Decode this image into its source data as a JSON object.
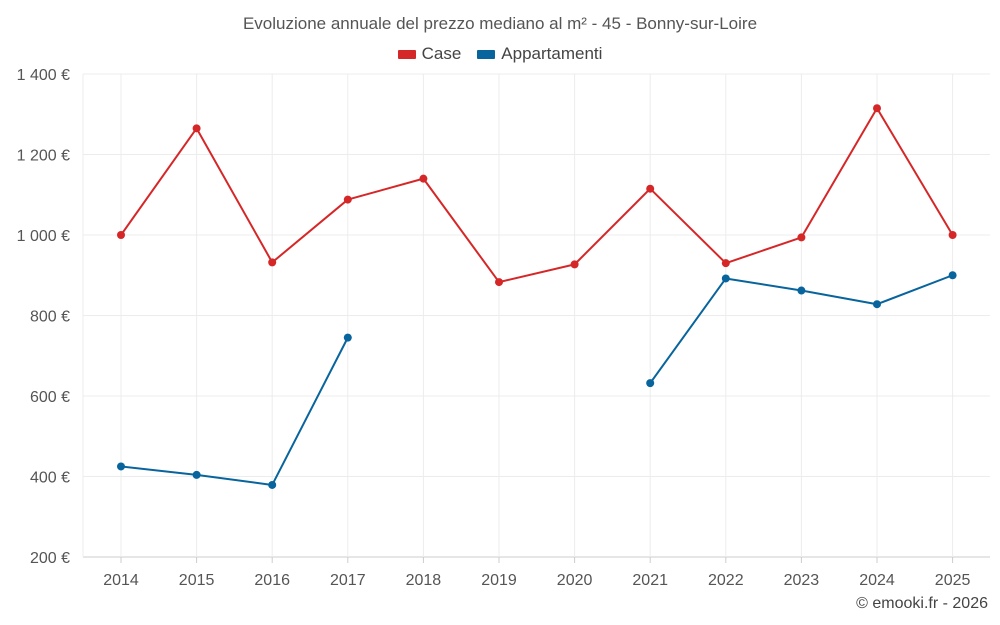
{
  "chart_data": {
    "type": "line",
    "title": "Evoluzione annuale del prezzo mediano al m² - 45 - Bonny-sur-Loire",
    "xlabel": "",
    "ylabel": "",
    "categories": [
      "2014",
      "2015",
      "2016",
      "2017",
      "2018",
      "2019",
      "2020",
      "2021",
      "2022",
      "2023",
      "2024",
      "2025"
    ],
    "ylim": [
      200,
      1400
    ],
    "yticks": [
      200,
      400,
      600,
      800,
      1000,
      1200,
      1400
    ],
    "ytick_labels": [
      "200 €",
      "400 €",
      "600 €",
      "800 €",
      "1 000 €",
      "1 200 €",
      "1 400 €"
    ],
    "grid": true,
    "legend_position": "top-center",
    "series": [
      {
        "name": "Case",
        "color": "#d62728",
        "values": [
          1000,
          1265,
          932,
          1088,
          1140,
          883,
          927,
          1115,
          930,
          994,
          1315,
          1000
        ]
      },
      {
        "name": "Appartamenti",
        "color": "#08649c",
        "values": [
          425,
          404,
          379,
          745,
          null,
          null,
          null,
          632,
          892,
          862,
          828,
          900
        ]
      }
    ]
  },
  "footer": {
    "copyright": "© emooki.fr - 2026"
  }
}
